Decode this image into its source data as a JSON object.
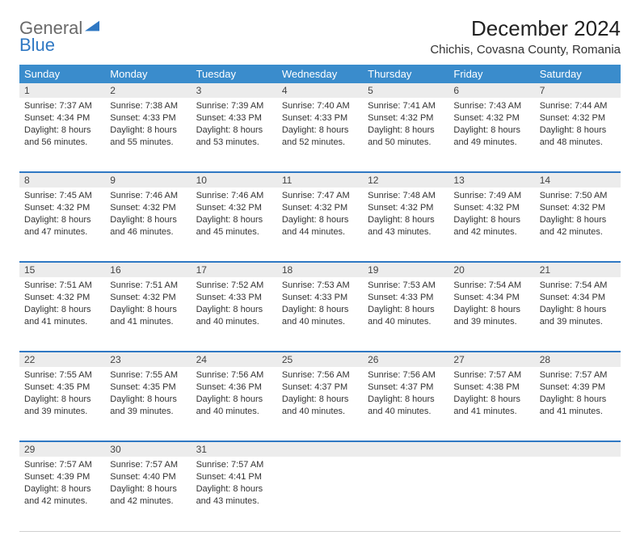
{
  "logo": {
    "general": "General",
    "blue": "Blue"
  },
  "title": "December 2024",
  "location": "Chichis, Covasna County, Romania",
  "colors": {
    "header_bg": "#3a8ccc",
    "header_text": "#ffffff",
    "daynum_bg": "#ececec",
    "week_border": "#2f78c3",
    "logo_gray": "#6a6a6a",
    "logo_blue": "#2f78c3"
  },
  "weekdays": [
    "Sunday",
    "Monday",
    "Tuesday",
    "Wednesday",
    "Thursday",
    "Friday",
    "Saturday"
  ],
  "weeks": [
    [
      {
        "n": "1",
        "sr": "Sunrise: 7:37 AM",
        "ss": "Sunset: 4:34 PM",
        "d1": "Daylight: 8 hours",
        "d2": "and 56 minutes."
      },
      {
        "n": "2",
        "sr": "Sunrise: 7:38 AM",
        "ss": "Sunset: 4:33 PM",
        "d1": "Daylight: 8 hours",
        "d2": "and 55 minutes."
      },
      {
        "n": "3",
        "sr": "Sunrise: 7:39 AM",
        "ss": "Sunset: 4:33 PM",
        "d1": "Daylight: 8 hours",
        "d2": "and 53 minutes."
      },
      {
        "n": "4",
        "sr": "Sunrise: 7:40 AM",
        "ss": "Sunset: 4:33 PM",
        "d1": "Daylight: 8 hours",
        "d2": "and 52 minutes."
      },
      {
        "n": "5",
        "sr": "Sunrise: 7:41 AM",
        "ss": "Sunset: 4:32 PM",
        "d1": "Daylight: 8 hours",
        "d2": "and 50 minutes."
      },
      {
        "n": "6",
        "sr": "Sunrise: 7:43 AM",
        "ss": "Sunset: 4:32 PM",
        "d1": "Daylight: 8 hours",
        "d2": "and 49 minutes."
      },
      {
        "n": "7",
        "sr": "Sunrise: 7:44 AM",
        "ss": "Sunset: 4:32 PM",
        "d1": "Daylight: 8 hours",
        "d2": "and 48 minutes."
      }
    ],
    [
      {
        "n": "8",
        "sr": "Sunrise: 7:45 AM",
        "ss": "Sunset: 4:32 PM",
        "d1": "Daylight: 8 hours",
        "d2": "and 47 minutes."
      },
      {
        "n": "9",
        "sr": "Sunrise: 7:46 AM",
        "ss": "Sunset: 4:32 PM",
        "d1": "Daylight: 8 hours",
        "d2": "and 46 minutes."
      },
      {
        "n": "10",
        "sr": "Sunrise: 7:46 AM",
        "ss": "Sunset: 4:32 PM",
        "d1": "Daylight: 8 hours",
        "d2": "and 45 minutes."
      },
      {
        "n": "11",
        "sr": "Sunrise: 7:47 AM",
        "ss": "Sunset: 4:32 PM",
        "d1": "Daylight: 8 hours",
        "d2": "and 44 minutes."
      },
      {
        "n": "12",
        "sr": "Sunrise: 7:48 AM",
        "ss": "Sunset: 4:32 PM",
        "d1": "Daylight: 8 hours",
        "d2": "and 43 minutes."
      },
      {
        "n": "13",
        "sr": "Sunrise: 7:49 AM",
        "ss": "Sunset: 4:32 PM",
        "d1": "Daylight: 8 hours",
        "d2": "and 42 minutes."
      },
      {
        "n": "14",
        "sr": "Sunrise: 7:50 AM",
        "ss": "Sunset: 4:32 PM",
        "d1": "Daylight: 8 hours",
        "d2": "and 42 minutes."
      }
    ],
    [
      {
        "n": "15",
        "sr": "Sunrise: 7:51 AM",
        "ss": "Sunset: 4:32 PM",
        "d1": "Daylight: 8 hours",
        "d2": "and 41 minutes."
      },
      {
        "n": "16",
        "sr": "Sunrise: 7:51 AM",
        "ss": "Sunset: 4:32 PM",
        "d1": "Daylight: 8 hours",
        "d2": "and 41 minutes."
      },
      {
        "n": "17",
        "sr": "Sunrise: 7:52 AM",
        "ss": "Sunset: 4:33 PM",
        "d1": "Daylight: 8 hours",
        "d2": "and 40 minutes."
      },
      {
        "n": "18",
        "sr": "Sunrise: 7:53 AM",
        "ss": "Sunset: 4:33 PM",
        "d1": "Daylight: 8 hours",
        "d2": "and 40 minutes."
      },
      {
        "n": "19",
        "sr": "Sunrise: 7:53 AM",
        "ss": "Sunset: 4:33 PM",
        "d1": "Daylight: 8 hours",
        "d2": "and 40 minutes."
      },
      {
        "n": "20",
        "sr": "Sunrise: 7:54 AM",
        "ss": "Sunset: 4:34 PM",
        "d1": "Daylight: 8 hours",
        "d2": "and 39 minutes."
      },
      {
        "n": "21",
        "sr": "Sunrise: 7:54 AM",
        "ss": "Sunset: 4:34 PM",
        "d1": "Daylight: 8 hours",
        "d2": "and 39 minutes."
      }
    ],
    [
      {
        "n": "22",
        "sr": "Sunrise: 7:55 AM",
        "ss": "Sunset: 4:35 PM",
        "d1": "Daylight: 8 hours",
        "d2": "and 39 minutes."
      },
      {
        "n": "23",
        "sr": "Sunrise: 7:55 AM",
        "ss": "Sunset: 4:35 PM",
        "d1": "Daylight: 8 hours",
        "d2": "and 39 minutes."
      },
      {
        "n": "24",
        "sr": "Sunrise: 7:56 AM",
        "ss": "Sunset: 4:36 PM",
        "d1": "Daylight: 8 hours",
        "d2": "and 40 minutes."
      },
      {
        "n": "25",
        "sr": "Sunrise: 7:56 AM",
        "ss": "Sunset: 4:37 PM",
        "d1": "Daylight: 8 hours",
        "d2": "and 40 minutes."
      },
      {
        "n": "26",
        "sr": "Sunrise: 7:56 AM",
        "ss": "Sunset: 4:37 PM",
        "d1": "Daylight: 8 hours",
        "d2": "and 40 minutes."
      },
      {
        "n": "27",
        "sr": "Sunrise: 7:57 AM",
        "ss": "Sunset: 4:38 PM",
        "d1": "Daylight: 8 hours",
        "d2": "and 41 minutes."
      },
      {
        "n": "28",
        "sr": "Sunrise: 7:57 AM",
        "ss": "Sunset: 4:39 PM",
        "d1": "Daylight: 8 hours",
        "d2": "and 41 minutes."
      }
    ],
    [
      {
        "n": "29",
        "sr": "Sunrise: 7:57 AM",
        "ss": "Sunset: 4:39 PM",
        "d1": "Daylight: 8 hours",
        "d2": "and 42 minutes."
      },
      {
        "n": "30",
        "sr": "Sunrise: 7:57 AM",
        "ss": "Sunset: 4:40 PM",
        "d1": "Daylight: 8 hours",
        "d2": "and 42 minutes."
      },
      {
        "n": "31",
        "sr": "Sunrise: 7:57 AM",
        "ss": "Sunset: 4:41 PM",
        "d1": "Daylight: 8 hours",
        "d2": "and 43 minutes."
      },
      null,
      null,
      null,
      null
    ]
  ]
}
